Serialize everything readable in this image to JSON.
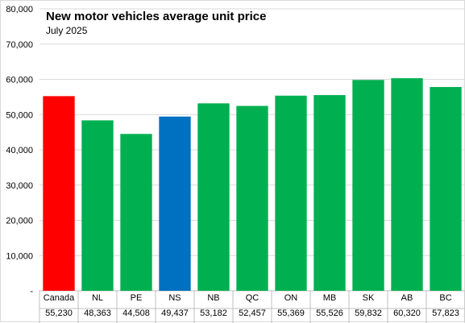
{
  "chart_data": {
    "type": "bar",
    "title": "New motor vehicles average unit price",
    "subtitle": "July 2025",
    "xlabel": "",
    "ylabel": "",
    "ylim": [
      0,
      80000
    ],
    "y_ticks": [
      0,
      10000,
      20000,
      30000,
      40000,
      50000,
      60000,
      70000,
      80000
    ],
    "y_tick_labels": [
      "-",
      "10,000",
      "20,000",
      "30,000",
      "40,000",
      "50,000",
      "60,000",
      "70,000",
      "80,000"
    ],
    "grid": true,
    "legend": "none",
    "categories": [
      "Canada",
      "NL",
      "PE",
      "NS",
      "NB",
      "QC",
      "ON",
      "MB",
      "SK",
      "AB",
      "BC"
    ],
    "values": [
      55230,
      48363,
      44508,
      49437,
      53182,
      52457,
      55369,
      55526,
      59832,
      60320,
      57823
    ],
    "value_labels": [
      "55,230",
      "48,363",
      "44,508",
      "49,437",
      "53,182",
      "52,457",
      "55,369",
      "55,526",
      "59,832",
      "60,320",
      "57,823"
    ],
    "bar_colors": [
      "#ff0000",
      "#00b050",
      "#00b050",
      "#0070c0",
      "#00b050",
      "#00b050",
      "#00b050",
      "#00b050",
      "#00b050",
      "#00b050",
      "#00b050"
    ]
  }
}
